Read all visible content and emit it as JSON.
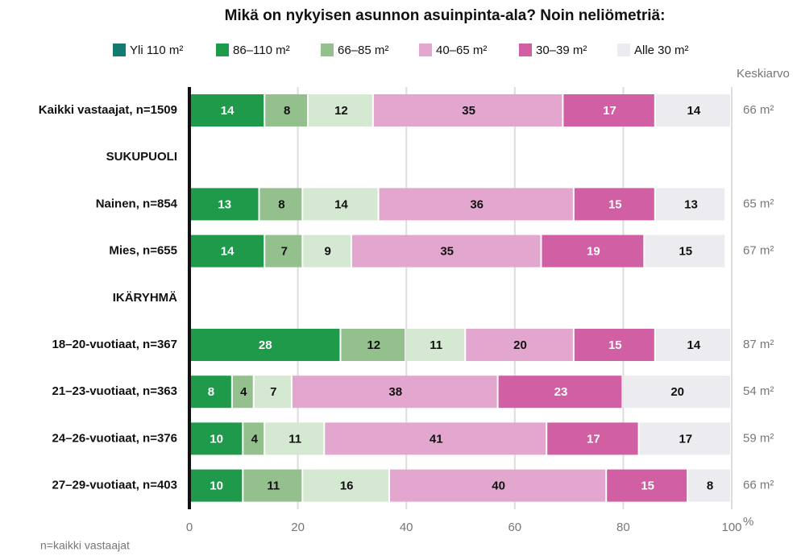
{
  "chart_data": {
    "type": "stacked_barh",
    "title": "Mikä on nykyisen asunnon asuinpinta-ala? Noin neliömetriä:",
    "categories": [
      "Kaikki vastaajat, n=1509",
      "SUKUPUOLI",
      "Nainen, n=854",
      "Mies, n=655",
      "IKÄRYHMÄ",
      "18–20-vuotiaat, n=367",
      "21–23-vuotiaat, n=363",
      "24–26-vuotiaat, n=376",
      "27–29-vuotiaat, n=403"
    ],
    "series": [
      {
        "name": "Yli 110 m²",
        "color": "#1f9a4b",
        "legend_color": "#137a72",
        "values": [
          14,
          null,
          13,
          14,
          null,
          28,
          8,
          10,
          10
        ]
      },
      {
        "name": "86–110 m²",
        "color": "#93c08c",
        "legend_color": "#1f9a4b",
        "values": [
          8,
          null,
          8,
          7,
          null,
          12,
          4,
          4,
          11
        ]
      },
      {
        "name": "66–85 m²",
        "color": "#d5e8d1",
        "legend_color": "#93c08c",
        "values": [
          12,
          null,
          14,
          9,
          null,
          11,
          7,
          11,
          16
        ]
      },
      {
        "name": "40–65 m²",
        "color": "#e3a7cf",
        "legend_color": "#e3a7cf",
        "values": [
          35,
          null,
          36,
          35,
          null,
          20,
          38,
          41,
          40
        ]
      },
      {
        "name": "30–39 m²",
        "color": "#d05fa4",
        "legend_color": "#d05fa4",
        "values": [
          17,
          null,
          15,
          19,
          null,
          15,
          23,
          17,
          15
        ]
      },
      {
        "name": "Alle 30 m²",
        "color": "#ebebf0",
        "legend_color": "#ebebf0",
        "values": [
          14,
          null,
          13,
          15,
          null,
          14,
          20,
          17,
          8
        ]
      }
    ],
    "averages": {
      "title": "Keskiarvo",
      "values": [
        66,
        null,
        65,
        67,
        null,
        87,
        54,
        59,
        66
      ],
      "value_labels": [
        "66 m²",
        null,
        "65 m²",
        "67 m²",
        null,
        "87 m²",
        "54 m²",
        "59 m²",
        "66 m²"
      ]
    },
    "xlim": [
      0,
      100
    ],
    "xticks": [
      0,
      20,
      40,
      60,
      80,
      100
    ],
    "xlabel": "%",
    "grid": true,
    "footnote": "n=kaikki vastaajat"
  }
}
